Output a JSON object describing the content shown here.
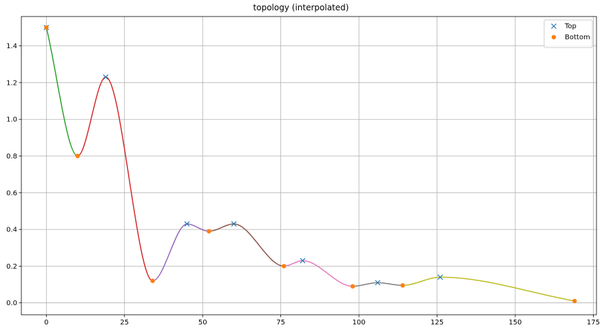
{
  "chart_data": {
    "type": "line",
    "title": "topology (interpolated)",
    "xlabel": "",
    "ylabel": "",
    "xlim": [
      -8,
      176
    ],
    "ylim": [
      -0.065,
      1.56
    ],
    "xticks": [
      0,
      25,
      50,
      75,
      100,
      125,
      150,
      175
    ],
    "yticks": [
      0.0,
      0.2,
      0.4,
      0.6,
      0.8,
      1.0,
      1.2,
      1.4
    ],
    "grid": true,
    "legend_position": "top-right",
    "segments": [
      {
        "color": "#2ca02c",
        "from": 0,
        "to": 1
      },
      {
        "color": "#d62728",
        "from": 1,
        "to": 3
      },
      {
        "color": "#9467bd",
        "from": 3,
        "to": 5
      },
      {
        "color": "#8c564b",
        "from": 5,
        "to": 7
      },
      {
        "color": "#e377c2",
        "from": 7,
        "to": 9
      },
      {
        "color": "#7f7f7f",
        "from": 9,
        "to": 11
      },
      {
        "color": "#bcbd22",
        "from": 11,
        "to": 13
      }
    ],
    "curve_points": [
      {
        "x": 0,
        "y": 1.5
      },
      {
        "x": 10,
        "y": 0.8
      },
      {
        "x": 19,
        "y": 1.23
      },
      {
        "x": 34,
        "y": 0.12
      },
      {
        "x": 45,
        "y": 0.43
      },
      {
        "x": 52,
        "y": 0.39
      },
      {
        "x": 60,
        "y": 0.43
      },
      {
        "x": 76,
        "y": 0.2
      },
      {
        "x": 82,
        "y": 0.23
      },
      {
        "x": 98,
        "y": 0.09
      },
      {
        "x": 106,
        "y": 0.11
      },
      {
        "x": 114,
        "y": 0.095
      },
      {
        "x": 126,
        "y": 0.14
      },
      {
        "x": 169,
        "y": 0.01
      }
    ],
    "series": [
      {
        "name": "Top",
        "marker": "x",
        "color": "#1f77b4",
        "points": [
          {
            "x": 0,
            "y": 1.5
          },
          {
            "x": 19,
            "y": 1.23
          },
          {
            "x": 45,
            "y": 0.43
          },
          {
            "x": 60,
            "y": 0.43
          },
          {
            "x": 82,
            "y": 0.23
          },
          {
            "x": 106,
            "y": 0.11
          },
          {
            "x": 126,
            "y": 0.14
          }
        ]
      },
      {
        "name": "Bottom",
        "marker": "o",
        "color": "#ff7f0e",
        "points": [
          {
            "x": 0,
            "y": 1.5
          },
          {
            "x": 10,
            "y": 0.8
          },
          {
            "x": 34,
            "y": 0.12
          },
          {
            "x": 52,
            "y": 0.39
          },
          {
            "x": 76,
            "y": 0.2
          },
          {
            "x": 98,
            "y": 0.09
          },
          {
            "x": 114,
            "y": 0.095
          },
          {
            "x": 169,
            "y": 0.01
          }
        ]
      }
    ]
  }
}
